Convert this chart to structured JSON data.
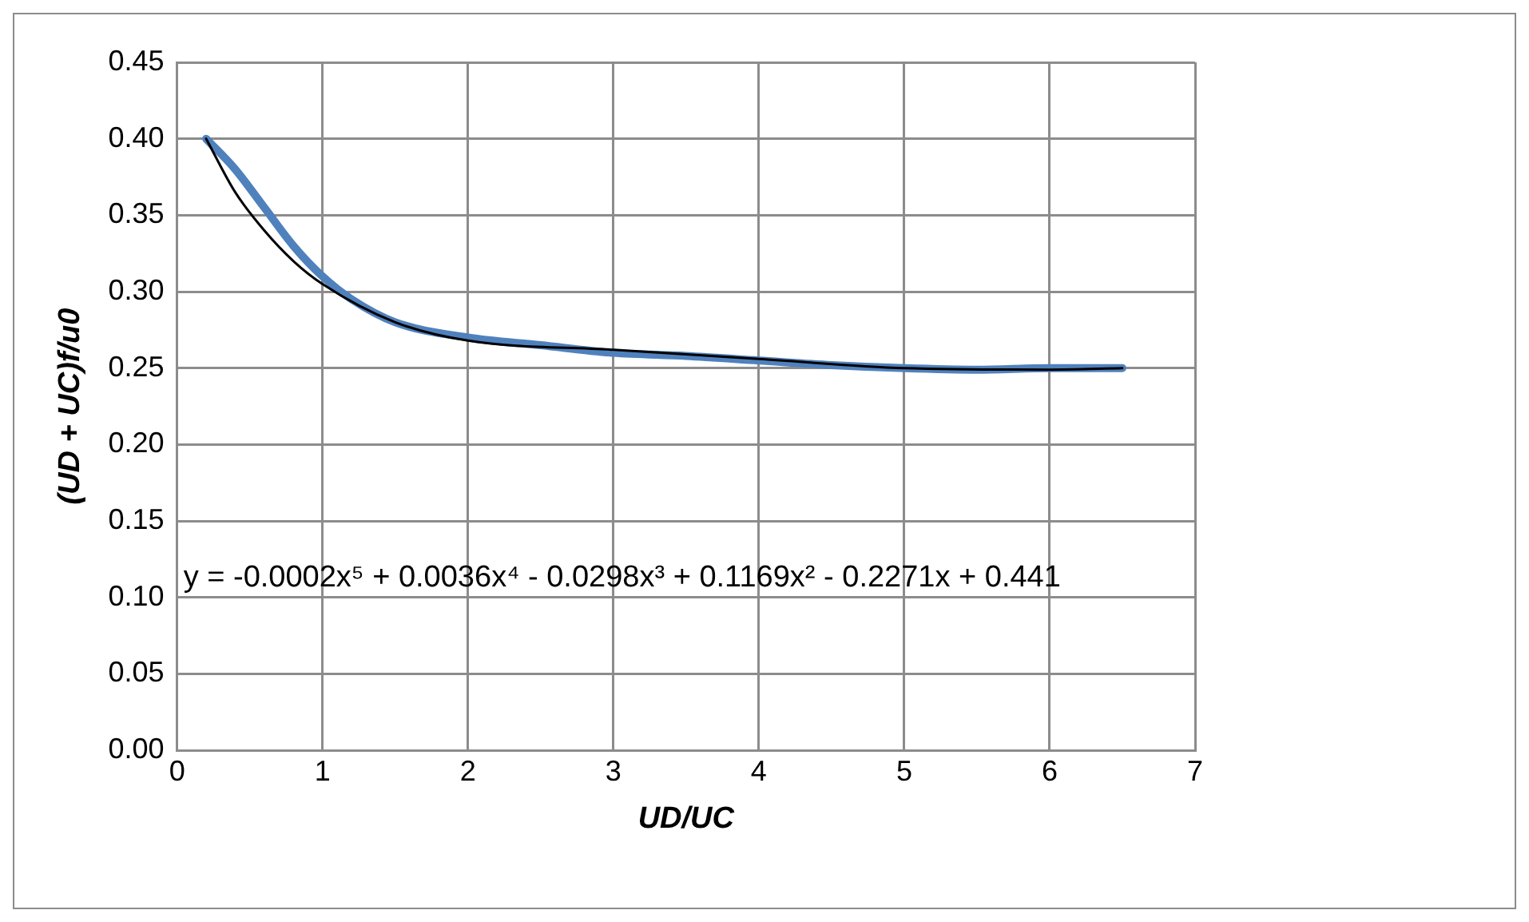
{
  "chart_data": {
    "type": "line",
    "xlabel": "UD/UC",
    "ylabel": "(UD + UC)f/u0",
    "xlim": [
      0,
      7
    ],
    "xticks": [
      0,
      1,
      2,
      3,
      4,
      5,
      6,
      7
    ],
    "ylim": [
      0,
      0.45
    ],
    "yticks": [
      {
        "value": 0,
        "label": "0.00"
      },
      {
        "value": 0.05,
        "label": "0.05"
      },
      {
        "value": 0.1,
        "label": "0.10"
      },
      {
        "value": 0.15,
        "label": "0.15"
      },
      {
        "value": 0.2,
        "label": "0.20"
      },
      {
        "value": 0.25,
        "label": "0.25"
      },
      {
        "value": 0.3,
        "label": "0.30"
      },
      {
        "value": 0.35,
        "label": "0.35"
      },
      {
        "value": 0.4,
        "label": "0.40"
      },
      {
        "value": 0.45,
        "label": "0.45"
      }
    ],
    "grid": true,
    "legend": false,
    "marker": "none",
    "line_style": "solid",
    "annotations": [
      "y = -0.0002x⁵ + 0.0036x⁴ - 0.0298x³ + 0.1169x² - 0.2271x + 0.441"
    ],
    "series": [
      {
        "color": "#4f81bd",
        "x": [
          0.2,
          0.4,
          0.6,
          0.8,
          1.0,
          1.2,
          1.5,
          2,
          2.5,
          3,
          3.5,
          4,
          4.5,
          5,
          5.5,
          6,
          6.5
        ],
        "values": [
          0.4,
          0.38,
          0.355,
          0.33,
          0.31,
          0.295,
          0.28,
          0.27,
          0.265,
          0.26,
          0.258,
          0.255,
          0.252,
          0.25,
          0.249,
          0.25,
          0.25
        ]
      },
      {
        "color": "#000000",
        "x": [
          0.2,
          0.4,
          0.6,
          0.8,
          1.0,
          1.5,
          2,
          3,
          4,
          5,
          6,
          6.5
        ],
        "values": [
          0.4,
          0.365,
          0.34,
          0.32,
          0.305,
          0.28,
          0.268,
          0.262,
          0.256,
          0.25,
          0.249,
          0.25
        ]
      }
    ]
  }
}
